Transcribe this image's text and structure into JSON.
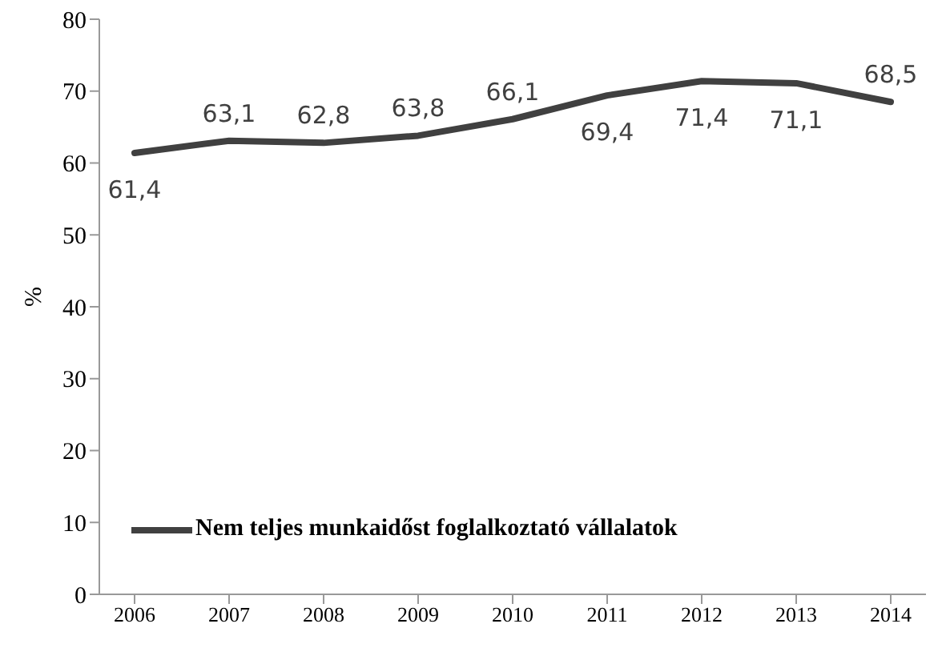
{
  "chart_data": {
    "type": "line",
    "ylabel": "%",
    "categories": [
      "2006",
      "2007",
      "2008",
      "2009",
      "2010",
      "2011",
      "2012",
      "2013",
      "2014"
    ],
    "series": [
      {
        "name": "Nem teljes munkaidőst foglalkoztató vállalatok",
        "color": "#404040",
        "values": [
          61.4,
          63.1,
          62.8,
          63.8,
          66.1,
          69.4,
          71.4,
          71.1,
          68.5
        ],
        "value_labels": [
          "61,4",
          "63,1",
          "62,8",
          "63,8",
          "66,1",
          "69,4",
          "71,4",
          "71,1",
          "68,5"
        ]
      }
    ],
    "ylim": [
      0,
      80
    ],
    "yticks": [
      0,
      10,
      20,
      30,
      40,
      50,
      60,
      70,
      80
    ],
    "grid": false,
    "legend": "bottom left",
    "marker": "none",
    "line_style": "solid"
  }
}
